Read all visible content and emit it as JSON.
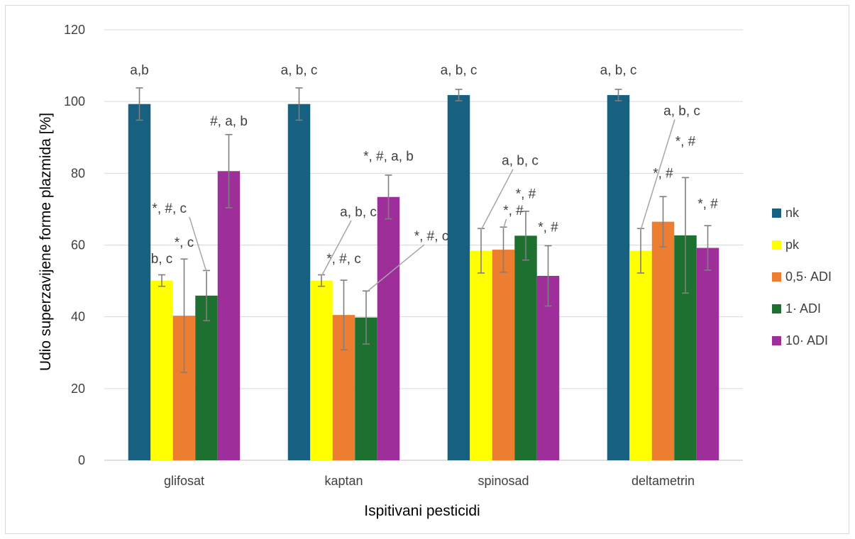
{
  "chart_data": {
    "type": "bar",
    "title": "",
    "xlabel": "Ispitivani pesticidi",
    "ylabel": "Udio superzavijene forme plazmida [%]",
    "ylim": [
      0,
      120
    ],
    "yticks": [
      0,
      20,
      40,
      60,
      80,
      100,
      120
    ],
    "grid": true,
    "legend_position": "right",
    "categories": [
      "glifosat",
      "kaptan",
      "spinosad",
      "deltametrin"
    ],
    "series": [
      {
        "name": "nk",
        "color": "#17607F",
        "values": [
          99.3,
          99.3,
          101.8,
          101.8
        ],
        "errors": [
          4.5,
          4.5,
          1.6,
          1.6
        ]
      },
      {
        "name": "pk",
        "color": "#FFFF00",
        "values": [
          50.1,
          50.1,
          58.4,
          58.4
        ],
        "errors": [
          1.6,
          1.6,
          6.2,
          6.2
        ]
      },
      {
        "name": "0,5· ADI",
        "color": "#ED7D31",
        "values": [
          40.3,
          40.5,
          58.7,
          66.5
        ],
        "errors": [
          15.8,
          9.7,
          6.3,
          7.0
        ]
      },
      {
        "name": "1· ADI",
        "color": "#1E7030",
        "values": [
          45.9,
          39.8,
          62.6,
          62.7
        ],
        "errors": [
          7.0,
          7.4,
          6.8,
          16.1
        ]
      },
      {
        "name": "10· ADI",
        "color": "#9E2E9A",
        "values": [
          80.6,
          73.4,
          51.4,
          59.2
        ],
        "errors": [
          10.2,
          6.1,
          8.4,
          6.2
        ]
      }
    ],
    "annotations": [
      {
        "text": "a,b",
        "category": "glifosat",
        "series": "nk",
        "y": 107.5,
        "leader": false
      },
      {
        "text": "b, c",
        "category": "glifosat",
        "series": "pk",
        "y": 55,
        "leader": false
      },
      {
        "text": "*, c",
        "category": "glifosat",
        "series": "0,5· ADI",
        "y": 59.5,
        "leader": false
      },
      {
        "text": "*, #, c",
        "category": "glifosat",
        "series": "1· ADI",
        "y": 69,
        "leader": true
      },
      {
        "text": "#, a, b",
        "category": "glifosat",
        "series": "10· ADI",
        "y": 93.3,
        "leader": false
      },
      {
        "text": "a, b, c",
        "category": "kaptan",
        "series": "nk",
        "y": 107.5,
        "leader": false
      },
      {
        "text": "a, b, c",
        "category": "kaptan",
        "series": "pk",
        "y": 68,
        "leader": true
      },
      {
        "text": "*, #, c",
        "category": "kaptan",
        "series": "0,5· ADI",
        "y": 55,
        "leader": false
      },
      {
        "text": "*, #, c",
        "category": "kaptan",
        "series": "1· ADI",
        "y": 61.3,
        "leader": true
      },
      {
        "text": "*, #, a, b",
        "category": "kaptan",
        "series": "10· ADI",
        "y": 83.5,
        "leader": false
      },
      {
        "text": "a, b, c",
        "category": "spinosad",
        "series": "nk",
        "y": 107.5,
        "leader": false
      },
      {
        "text": "a, b, c",
        "category": "spinosad",
        "series": "pk",
        "y": 82.3,
        "leader": true
      },
      {
        "text": "*, #",
        "category": "spinosad",
        "series": "0,5· ADI",
        "y": 68.4,
        "leader": true
      },
      {
        "text": "*, #",
        "category": "spinosad",
        "series": "1· ADI",
        "y": 73,
        "leader": false
      },
      {
        "text": "*, #",
        "category": "spinosad",
        "series": "10· ADI",
        "y": 63.8,
        "leader": false
      },
      {
        "text": "a, b, c",
        "category": "deltametrin",
        "series": "nk",
        "y": 107.5,
        "leader": false
      },
      {
        "text": "a, b, c",
        "category": "deltametrin",
        "series": "pk",
        "y": 96.2,
        "leader": true
      },
      {
        "text": "*, #",
        "category": "deltametrin",
        "series": "0,5· ADI",
        "y": 78.8,
        "leader": false
      },
      {
        "text": "*, #",
        "category": "deltametrin",
        "series": "1· ADI",
        "y": 87.7,
        "leader": false
      },
      {
        "text": "*, #",
        "category": "deltametrin",
        "series": "10· ADI",
        "y": 70.3,
        "leader": false
      }
    ]
  }
}
